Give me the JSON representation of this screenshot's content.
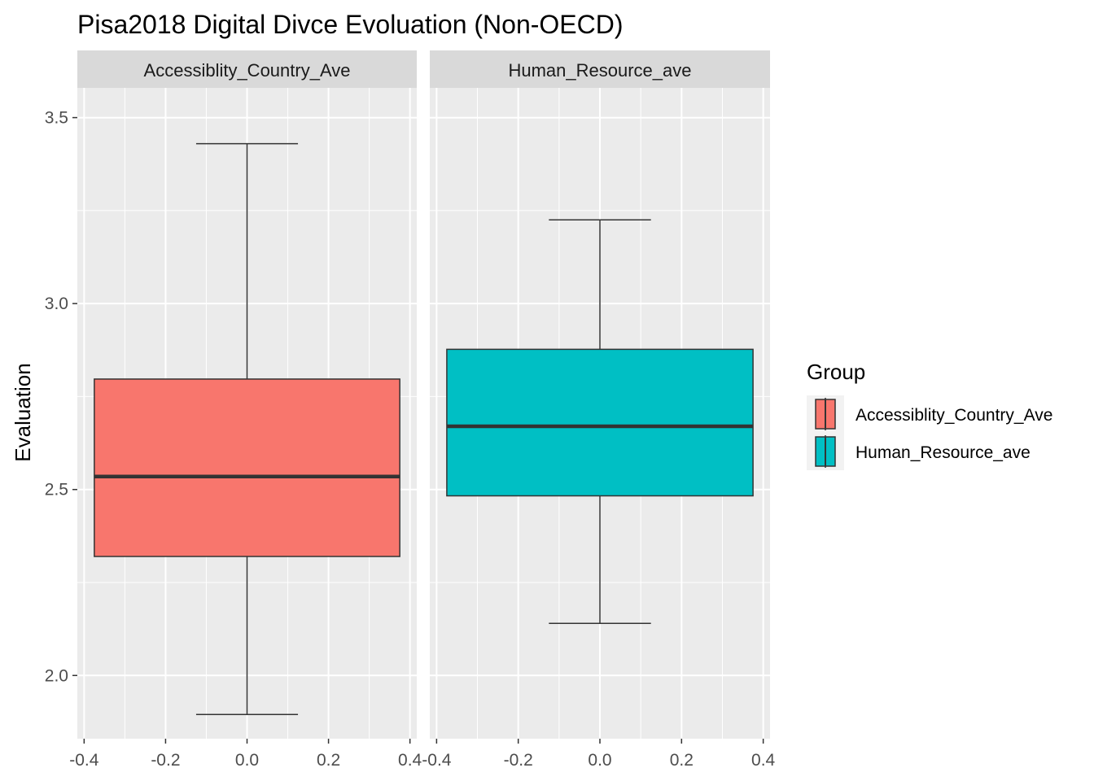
{
  "chart_data": {
    "type": "boxplot",
    "title": "Pisa2018 Digital Divce Evoluation (Non-OECD)",
    "ylabel": "Evaluation",
    "xlabel": "",
    "xlim": [
      -0.4,
      0.4
    ],
    "ylim": [
      1.83,
      3.58
    ],
    "x_ticks": [
      "-0.4",
      "-0.2",
      "0.0",
      "0.2",
      "0.4"
    ],
    "x_tick_values": [
      -0.4,
      -0.2,
      0.0,
      0.2,
      0.4
    ],
    "y_ticks": [
      "2.0",
      "2.5",
      "3.0",
      "3.5"
    ],
    "y_tick_values": [
      2.0,
      2.5,
      3.0,
      3.5
    ],
    "grid": true,
    "legend_position": "right",
    "legend_title": "Group",
    "panels": [
      {
        "strip_label": "Accessiblity_Country_Ave",
        "series": "Accessiblity_Country_Ave",
        "color": "#F8766D",
        "min": 1.895,
        "q1": 2.32,
        "median": 2.535,
        "q3": 2.797,
        "max": 3.43
      },
      {
        "strip_label": "Human_Resource_ave",
        "series": "Human_Resource_ave",
        "color": "#00BFC4",
        "min": 2.14,
        "q1": 2.483,
        "median": 2.67,
        "q3": 2.877,
        "max": 3.225
      }
    ],
    "legend": [
      {
        "label": "Accessiblity_Country_Ave",
        "color": "#F8766D"
      },
      {
        "label": "Human_Resource_ave",
        "color": "#00BFC4"
      }
    ]
  }
}
